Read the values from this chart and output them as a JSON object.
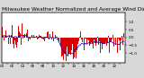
{
  "title": "Milwaukee Weather Normalized and Average Wind Direction (Last 24 Hours)",
  "background_color": "#d8d8d8",
  "plot_bg_color": "#ffffff",
  "grid_color": "#aaaaaa",
  "bar_color": "#dd0000",
  "line_color": "#0000cc",
  "n_points": 288,
  "ylim": [
    -1.6,
    1.6
  ],
  "ytick_vals": [
    1.0,
    0.5,
    0.0,
    -0.5,
    -1.0
  ],
  "title_fontsize": 4.2,
  "tick_fontsize": 3.0,
  "line_width": 0.5,
  "bar_width": 1.0
}
